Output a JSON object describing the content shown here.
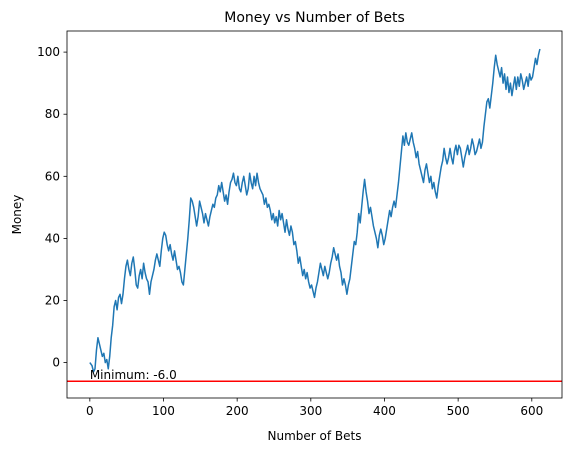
{
  "chart_data": {
    "type": "line",
    "title": "Money vs Number of Bets",
    "xlabel": "Number of Bets",
    "ylabel": "Money",
    "xlim": [
      -31,
      641
    ],
    "ylim": [
      -11.4,
      106.8
    ],
    "xticks": [
      0,
      100,
      200,
      300,
      400,
      500,
      600
    ],
    "yticks": [
      0,
      20,
      40,
      60,
      80,
      100
    ],
    "grid": false,
    "colors": {
      "line": "#1f77b4",
      "minimum_line": "#ff0000",
      "axes": "#000000"
    },
    "series": [
      {
        "color": "#1f77b4",
        "points": [
          [
            0,
            0
          ],
          [
            3,
            -1
          ],
          [
            5,
            -3
          ],
          [
            7,
            -2
          ],
          [
            9,
            4
          ],
          [
            11,
            8
          ],
          [
            13,
            6
          ],
          [
            15,
            4
          ],
          [
            17,
            2
          ],
          [
            19,
            3
          ],
          [
            21,
            0
          ],
          [
            23,
            1
          ],
          [
            25,
            -2
          ],
          [
            27,
            2
          ],
          [
            29,
            8
          ],
          [
            31,
            12
          ],
          [
            33,
            18
          ],
          [
            35,
            20
          ],
          [
            37,
            17
          ],
          [
            39,
            21
          ],
          [
            41,
            22
          ],
          [
            43,
            19
          ],
          [
            45,
            22
          ],
          [
            47,
            27
          ],
          [
            49,
            31
          ],
          [
            51,
            33
          ],
          [
            53,
            30
          ],
          [
            55,
            28
          ],
          [
            57,
            32
          ],
          [
            59,
            34
          ],
          [
            61,
            30
          ],
          [
            63,
            25
          ],
          [
            65,
            24
          ],
          [
            67,
            28
          ],
          [
            69,
            30
          ],
          [
            71,
            27
          ],
          [
            73,
            32
          ],
          [
            75,
            29
          ],
          [
            77,
            27
          ],
          [
            79,
            26
          ],
          [
            81,
            22
          ],
          [
            83,
            26
          ],
          [
            85,
            28
          ],
          [
            87,
            30
          ],
          [
            89,
            33
          ],
          [
            91,
            35
          ],
          [
            93,
            33
          ],
          [
            95,
            31
          ],
          [
            97,
            36
          ],
          [
            99,
            40
          ],
          [
            101,
            42
          ],
          [
            103,
            41
          ],
          [
            105,
            38
          ],
          [
            107,
            36
          ],
          [
            109,
            38
          ],
          [
            111,
            35
          ],
          [
            113,
            33
          ],
          [
            115,
            36
          ],
          [
            117,
            33
          ],
          [
            119,
            30
          ],
          [
            121,
            31
          ],
          [
            123,
            29
          ],
          [
            125,
            26
          ],
          [
            127,
            25
          ],
          [
            129,
            30
          ],
          [
            131,
            35
          ],
          [
            133,
            40
          ],
          [
            135,
            46
          ],
          [
            137,
            53
          ],
          [
            139,
            52
          ],
          [
            141,
            50
          ],
          [
            143,
            47
          ],
          [
            145,
            44
          ],
          [
            147,
            47
          ],
          [
            149,
            52
          ],
          [
            151,
            50
          ],
          [
            153,
            48
          ],
          [
            155,
            45
          ],
          [
            157,
            48
          ],
          [
            159,
            46
          ],
          [
            161,
            44
          ],
          [
            163,
            47
          ],
          [
            165,
            49
          ],
          [
            167,
            51
          ],
          [
            169,
            50
          ],
          [
            171,
            53
          ],
          [
            173,
            54
          ],
          [
            175,
            57
          ],
          [
            177,
            55
          ],
          [
            179,
            58
          ],
          [
            181,
            55
          ],
          [
            183,
            52
          ],
          [
            185,
            54
          ],
          [
            187,
            51
          ],
          [
            189,
            55
          ],
          [
            191,
            58
          ],
          [
            193,
            59
          ],
          [
            195,
            61
          ],
          [
            197,
            58
          ],
          [
            199,
            57
          ],
          [
            201,
            60
          ],
          [
            203,
            56
          ],
          [
            205,
            55
          ],
          [
            207,
            58
          ],
          [
            209,
            60
          ],
          [
            211,
            57
          ],
          [
            213,
            54
          ],
          [
            215,
            56
          ],
          [
            217,
            61
          ],
          [
            219,
            58
          ],
          [
            221,
            56
          ],
          [
            223,
            60
          ],
          [
            225,
            57
          ],
          [
            227,
            61
          ],
          [
            229,
            58
          ],
          [
            231,
            56
          ],
          [
            233,
            55
          ],
          [
            235,
            54
          ],
          [
            237,
            51
          ],
          [
            239,
            53
          ],
          [
            241,
            50
          ],
          [
            243,
            51
          ],
          [
            245,
            49
          ],
          [
            247,
            46
          ],
          [
            249,
            48
          ],
          [
            251,
            45
          ],
          [
            253,
            47
          ],
          [
            255,
            44
          ],
          [
            257,
            49
          ],
          [
            259,
            46
          ],
          [
            261,
            48
          ],
          [
            263,
            45
          ],
          [
            265,
            42
          ],
          [
            267,
            46
          ],
          [
            269,
            43
          ],
          [
            271,
            41
          ],
          [
            273,
            44
          ],
          [
            275,
            42
          ],
          [
            277,
            38
          ],
          [
            279,
            39
          ],
          [
            281,
            36
          ],
          [
            283,
            32
          ],
          [
            285,
            34
          ],
          [
            287,
            31
          ],
          [
            289,
            28
          ],
          [
            291,
            30
          ],
          [
            293,
            27
          ],
          [
            295,
            29
          ],
          [
            297,
            26
          ],
          [
            299,
            24
          ],
          [
            301,
            25
          ],
          [
            303,
            23
          ],
          [
            305,
            21
          ],
          [
            307,
            24
          ],
          [
            309,
            26
          ],
          [
            311,
            29
          ],
          [
            313,
            32
          ],
          [
            315,
            30
          ],
          [
            317,
            28
          ],
          [
            319,
            31
          ],
          [
            321,
            29
          ],
          [
            323,
            27
          ],
          [
            325,
            29
          ],
          [
            327,
            32
          ],
          [
            329,
            34
          ],
          [
            331,
            37
          ],
          [
            333,
            35
          ],
          [
            335,
            33
          ],
          [
            337,
            35
          ],
          [
            339,
            31
          ],
          [
            341,
            29
          ],
          [
            343,
            25
          ],
          [
            345,
            27
          ],
          [
            347,
            25
          ],
          [
            349,
            22
          ],
          [
            351,
            25
          ],
          [
            353,
            27
          ],
          [
            355,
            31
          ],
          [
            357,
            35
          ],
          [
            359,
            39
          ],
          [
            361,
            38
          ],
          [
            363,
            42
          ],
          [
            365,
            48
          ],
          [
            367,
            45
          ],
          [
            369,
            50
          ],
          [
            371,
            55
          ],
          [
            373,
            59
          ],
          [
            375,
            55
          ],
          [
            377,
            52
          ],
          [
            379,
            48
          ],
          [
            381,
            50
          ],
          [
            383,
            47
          ],
          [
            385,
            44
          ],
          [
            387,
            42
          ],
          [
            389,
            40
          ],
          [
            391,
            37
          ],
          [
            393,
            41
          ],
          [
            395,
            43
          ],
          [
            397,
            41
          ],
          [
            399,
            38
          ],
          [
            401,
            40
          ],
          [
            403,
            43
          ],
          [
            405,
            46
          ],
          [
            407,
            49
          ],
          [
            409,
            47
          ],
          [
            411,
            50
          ],
          [
            413,
            52
          ],
          [
            415,
            50
          ],
          [
            417,
            54
          ],
          [
            419,
            58
          ],
          [
            421,
            63
          ],
          [
            423,
            68
          ],
          [
            425,
            73
          ],
          [
            427,
            70
          ],
          [
            429,
            74
          ],
          [
            431,
            71
          ],
          [
            433,
            70
          ],
          [
            435,
            72
          ],
          [
            437,
            74
          ],
          [
            439,
            71
          ],
          [
            441,
            69
          ],
          [
            443,
            66
          ],
          [
            445,
            68
          ],
          [
            447,
            64
          ],
          [
            449,
            62
          ],
          [
            451,
            60
          ],
          [
            453,
            58
          ],
          [
            455,
            62
          ],
          [
            457,
            64
          ],
          [
            459,
            61
          ],
          [
            461,
            58
          ],
          [
            463,
            60
          ],
          [
            465,
            56
          ],
          [
            467,
            58
          ],
          [
            469,
            55
          ],
          [
            471,
            53
          ],
          [
            473,
            57
          ],
          [
            475,
            60
          ],
          [
            477,
            63
          ],
          [
            479,
            65
          ],
          [
            481,
            69
          ],
          [
            483,
            66
          ],
          [
            485,
            64
          ],
          [
            487,
            66
          ],
          [
            489,
            69
          ],
          [
            491,
            66
          ],
          [
            493,
            64
          ],
          [
            495,
            68
          ],
          [
            497,
            70
          ],
          [
            499,
            67
          ],
          [
            501,
            70
          ],
          [
            503,
            69
          ],
          [
            505,
            66
          ],
          [
            507,
            63
          ],
          [
            509,
            66
          ],
          [
            511,
            68
          ],
          [
            513,
            70
          ],
          [
            515,
            67
          ],
          [
            517,
            69
          ],
          [
            519,
            72
          ],
          [
            521,
            70
          ],
          [
            523,
            67
          ],
          [
            525,
            68
          ],
          [
            527,
            70
          ],
          [
            529,
            72
          ],
          [
            531,
            69
          ],
          [
            533,
            71
          ],
          [
            535,
            76
          ],
          [
            537,
            80
          ],
          [
            539,
            84
          ],
          [
            541,
            85
          ],
          [
            543,
            82
          ],
          [
            545,
            86
          ],
          [
            547,
            90
          ],
          [
            549,
            95
          ],
          [
            551,
            99
          ],
          [
            553,
            96
          ],
          [
            555,
            94
          ],
          [
            557,
            92
          ],
          [
            559,
            95
          ],
          [
            561,
            90
          ],
          [
            563,
            93
          ],
          [
            565,
            88
          ],
          [
            567,
            92
          ],
          [
            569,
            87
          ],
          [
            571,
            90
          ],
          [
            573,
            86
          ],
          [
            575,
            89
          ],
          [
            577,
            92
          ],
          [
            579,
            88
          ],
          [
            581,
            92
          ],
          [
            583,
            89
          ],
          [
            585,
            93
          ],
          [
            587,
            91
          ],
          [
            589,
            88
          ],
          [
            591,
            90
          ],
          [
            593,
            92
          ],
          [
            595,
            89
          ],
          [
            597,
            93
          ],
          [
            599,
            91
          ],
          [
            601,
            92
          ],
          [
            603,
            95
          ],
          [
            605,
            98
          ],
          [
            607,
            96
          ],
          [
            609,
            99
          ],
          [
            611,
            101
          ]
        ]
      }
    ],
    "minimum_line": {
      "y": -6.0,
      "label": "Minimum: -6.0"
    }
  }
}
